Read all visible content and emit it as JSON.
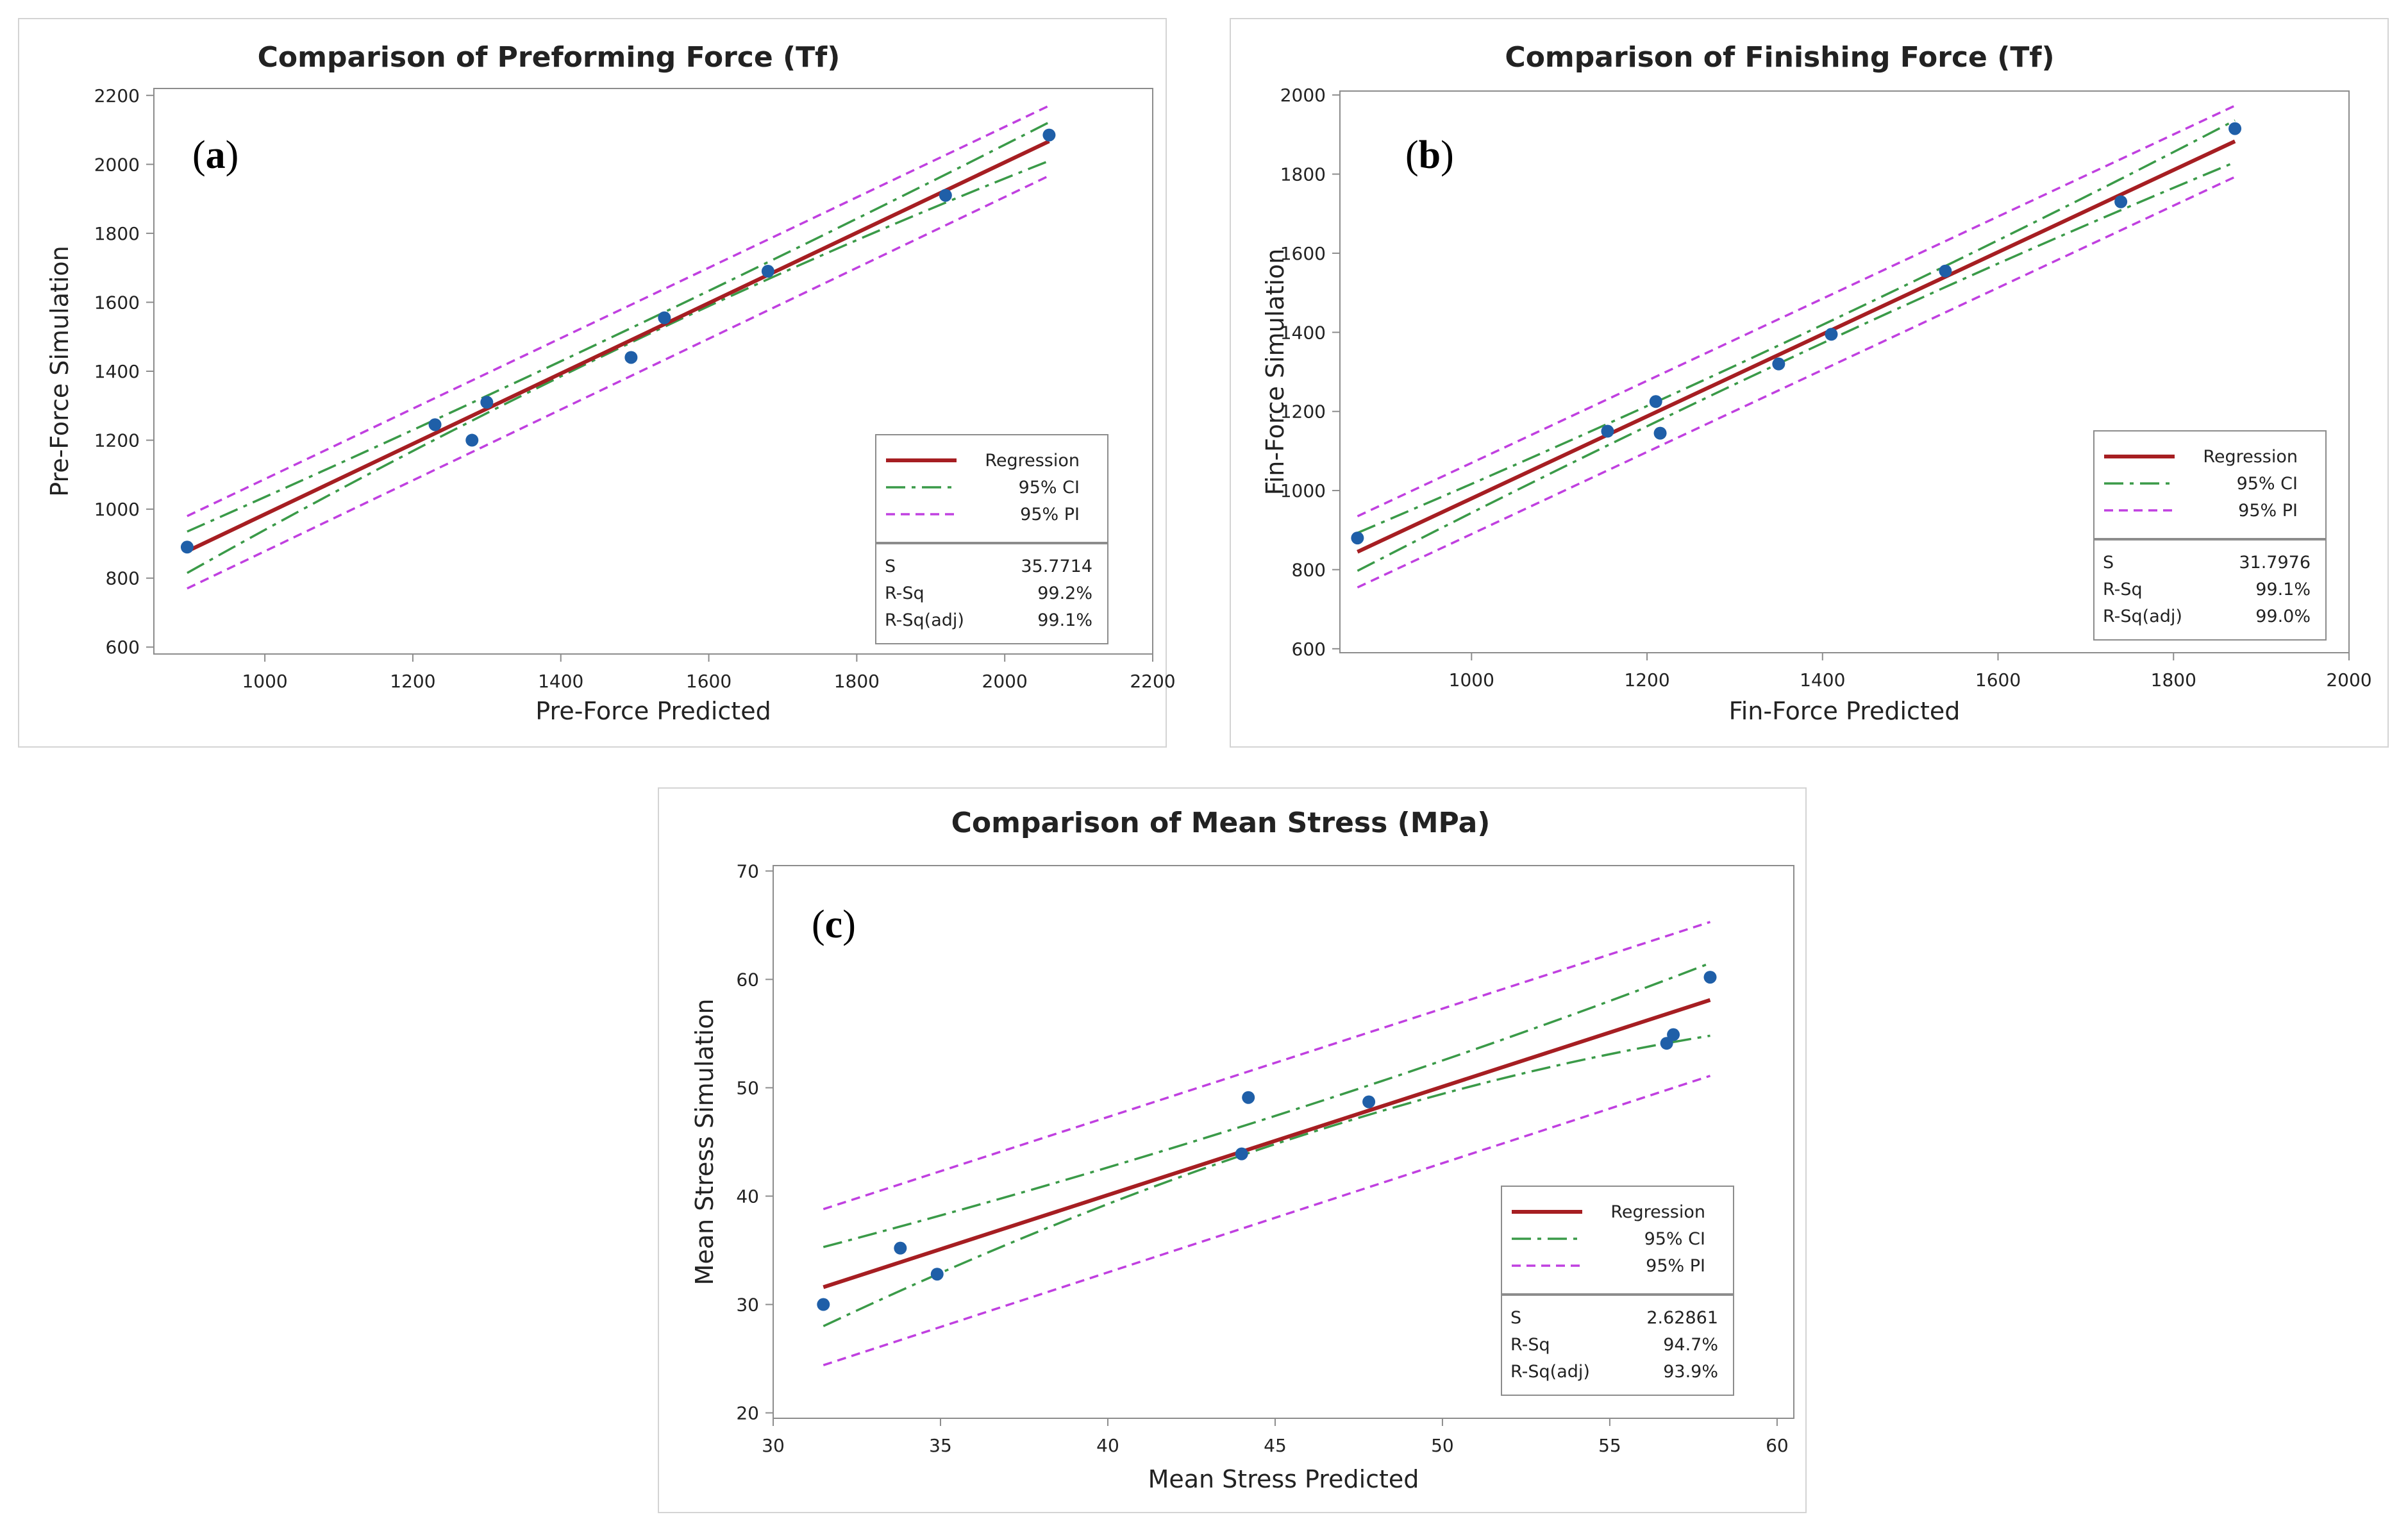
{
  "colors": {
    "regression": "#a61e22",
    "ci": "#3a9a48",
    "pi": "#c040e0",
    "points": "#1f5fa8",
    "frame": "#8c8c8c",
    "text": "#222222"
  },
  "chart_data": [
    {
      "type": "scatter",
      "panel_tag": "a",
      "title": "Comparison of Preforming Force (Tf)",
      "xlabel": "Pre-Force Predicted",
      "ylabel": "Pre-Force Simulation",
      "xlim": [
        850,
        2200
      ],
      "ylim": [
        580,
        2220
      ],
      "xticks": [
        1000,
        1200,
        1400,
        1600,
        1800,
        2000,
        2200
      ],
      "yticks": [
        600,
        800,
        1000,
        1200,
        1400,
        1600,
        1800,
        2000,
        2200
      ],
      "points": [
        [
          895,
          890
        ],
        [
          1230,
          1245
        ],
        [
          1280,
          1200
        ],
        [
          1300,
          1310
        ],
        [
          1495,
          1440
        ],
        [
          1540,
          1555
        ],
        [
          1680,
          1690
        ],
        [
          1920,
          1910
        ],
        [
          2060,
          2085
        ]
      ],
      "regression": {
        "x": [
          895,
          2060
        ],
        "y": [
          878,
          2067
        ]
      },
      "ci": {
        "lower": [
          [
            895,
            815
          ],
          [
            1480,
            1468
          ],
          [
            2060,
            2010
          ]
        ],
        "upper": [
          [
            895,
            935
          ],
          [
            1480,
            1510
          ],
          [
            2060,
            2122
          ]
        ]
      },
      "pi": {
        "lower": [
          [
            895,
            770
          ],
          [
            2060,
            1967
          ]
        ],
        "upper": [
          [
            895,
            980
          ],
          [
            2060,
            2170
          ]
        ]
      },
      "legend": {
        "items": [
          "Regression",
          "95% CI",
          "95% PI"
        ],
        "position": "bottom-right"
      },
      "stats": [
        [
          "S",
          "35.7714"
        ],
        [
          "R-Sq",
          "99.2%"
        ],
        [
          "R-Sq(adj)",
          "99.1%"
        ]
      ]
    },
    {
      "type": "scatter",
      "panel_tag": "b",
      "title": "Comparison of Finishing Force (Tf)",
      "xlabel": "Fin-Force Predicted",
      "ylabel": "Fin-Force Simulation",
      "xlim": [
        850,
        2000
      ],
      "ylim": [
        590,
        2010
      ],
      "xticks": [
        1000,
        1200,
        1400,
        1600,
        1800,
        2000
      ],
      "yticks": [
        600,
        800,
        1000,
        1200,
        1400,
        1600,
        1800,
        2000
      ],
      "points": [
        [
          870,
          880
        ],
        [
          1155,
          1150
        ],
        [
          1210,
          1225
        ],
        [
          1215,
          1145
        ],
        [
          1350,
          1320
        ],
        [
          1410,
          1395
        ],
        [
          1540,
          1555
        ],
        [
          1740,
          1730
        ],
        [
          1870,
          1915
        ]
      ],
      "regression": {
        "x": [
          870,
          1870
        ],
        "y": [
          845,
          1883
        ]
      },
      "ci": {
        "lower": [
          [
            870,
            797
          ],
          [
            1380,
            1352
          ],
          [
            1870,
            1830
          ]
        ],
        "upper": [
          [
            870,
            893
          ],
          [
            1380,
            1398
          ],
          [
            1870,
            1936
          ]
        ]
      },
      "pi": {
        "lower": [
          [
            870,
            755
          ],
          [
            1870,
            1793
          ]
        ],
        "upper": [
          [
            870,
            935
          ],
          [
            1870,
            1973
          ]
        ]
      },
      "legend": {
        "items": [
          "Regression",
          "95% CI",
          "95% PI"
        ],
        "position": "bottom-right"
      },
      "stats": [
        [
          "S",
          "31.7976"
        ],
        [
          "R-Sq",
          "99.1%"
        ],
        [
          "R-Sq(adj)",
          "99.0%"
        ]
      ]
    },
    {
      "type": "scatter",
      "panel_tag": "c",
      "title": "Comparison of Mean Stress (MPa)",
      "xlabel": "Mean Stress Predicted",
      "ylabel": "Mean Stress Simulation",
      "xlim": [
        30,
        60.5
      ],
      "ylim": [
        19.5,
        70.5
      ],
      "xticks": [
        30,
        35,
        40,
        45,
        50,
        55,
        60
      ],
      "yticks": [
        20,
        30,
        40,
        50,
        60,
        70
      ],
      "points": [
        [
          31.5,
          30.0
        ],
        [
          33.8,
          35.2
        ],
        [
          34.9,
          32.8
        ],
        [
          44.0,
          43.9
        ],
        [
          44.2,
          49.1
        ],
        [
          47.8,
          48.7
        ],
        [
          56.7,
          54.1
        ],
        [
          56.9,
          54.9
        ],
        [
          58.0,
          60.2
        ]
      ],
      "regression": {
        "x": [
          31.5,
          58.0
        ],
        "y": [
          31.6,
          58.1
        ]
      },
      "ci": {
        "lower": [
          [
            31.5,
            28.0
          ],
          [
            45.2,
            45.0
          ],
          [
            58.0,
            54.8
          ]
        ],
        "upper": [
          [
            31.5,
            35.3
          ],
          [
            45.2,
            47.6
          ],
          [
            58.0,
            61.5
          ]
        ]
      },
      "pi": {
        "lower": [
          [
            31.5,
            24.4
          ],
          [
            58.0,
            51.1
          ]
        ],
        "upper": [
          [
            31.5,
            38.8
          ],
          [
            58.0,
            65.3
          ]
        ]
      },
      "legend": {
        "items": [
          "Regression",
          "95% CI",
          "95% PI"
        ],
        "position": "bottom-right"
      },
      "stats": [
        [
          "S",
          "2.62861"
        ],
        [
          "R-Sq",
          "94.7%"
        ],
        [
          "R-Sq(adj)",
          "93.9%"
        ]
      ]
    }
  ]
}
